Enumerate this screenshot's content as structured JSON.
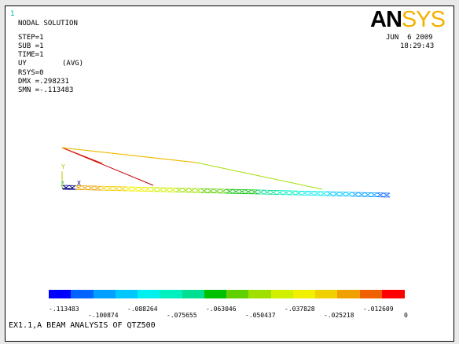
{
  "window_id": "1",
  "header": {
    "title": "NODAL SOLUTION",
    "step": "STEP=1",
    "sub": "SUB =1",
    "time": "TIME=1",
    "field": "UY",
    "avg": "(AVG)",
    "rsys": "RSYS=0",
    "dmx": "DMX =.298231",
    "smn": "SMN =-.113483"
  },
  "logo": {
    "part1": "AN",
    "part2": "SYS"
  },
  "date": "JUN  6 2009",
  "clock": "18:29:43",
  "triad": {
    "y": "Y",
    "z": "Z",
    "x": "X"
  },
  "legend": {
    "colors": [
      "#0000ff",
      "#0064ff",
      "#00a0ff",
      "#00c8ff",
      "#00f0f0",
      "#00f0c0",
      "#00e090",
      "#00c000",
      "#60d000",
      "#a0e000",
      "#d0f000",
      "#f0f000",
      "#f0d000",
      "#f0a000",
      "#f06000",
      "#ff0000"
    ],
    "top_labels": [
      "-.113483",
      "-.088264",
      "-.063046",
      "-.037828",
      "-.012609"
    ],
    "bottom_labels": [
      "-.100874",
      "-.075655",
      "-.050437",
      "-.025218",
      "0"
    ]
  },
  "footer": "EX1.1,A BEAM ANALYSIS OF QTZ500"
}
